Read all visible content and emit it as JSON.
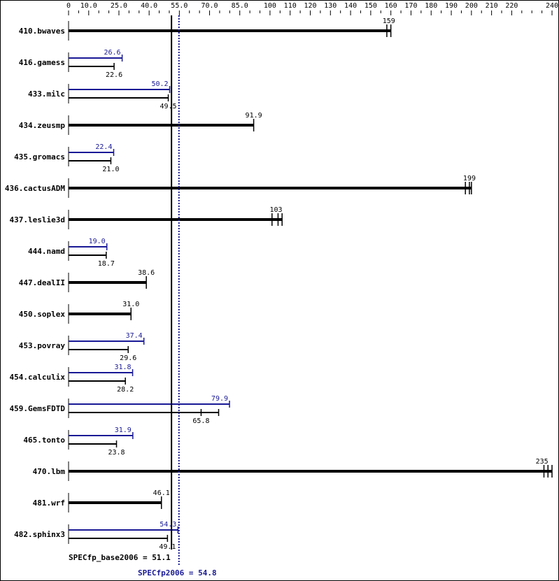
{
  "chart_data": {
    "type": "bar",
    "orientation": "horizontal",
    "title": "",
    "xlabel": "",
    "ylabel": "",
    "xlim": [
      0,
      240
    ],
    "grid": false,
    "legend": null,
    "x_ticks": [
      {
        "value": 0,
        "label": "0"
      },
      {
        "value": 10,
        "label": "10.0"
      },
      {
        "value": 25,
        "label": "25.0"
      },
      {
        "value": 40,
        "label": "40.0"
      },
      {
        "value": 55,
        "label": "55.0"
      },
      {
        "value": 70,
        "label": "70.0"
      },
      {
        "value": 85,
        "label": "85.0"
      },
      {
        "value": 100,
        "label": "100"
      },
      {
        "value": 110,
        "label": "110"
      },
      {
        "value": 120,
        "label": "120"
      },
      {
        "value": 130,
        "label": "130"
      },
      {
        "value": 140,
        "label": "140"
      },
      {
        "value": 150,
        "label": "150"
      },
      {
        "value": 160,
        "label": "160"
      },
      {
        "value": 170,
        "label": "170"
      },
      {
        "value": 180,
        "label": "180"
      },
      {
        "value": 190,
        "label": "190"
      },
      {
        "value": 200,
        "label": "200"
      },
      {
        "value": 210,
        "label": "210"
      },
      {
        "value": 220,
        "label": "220"
      },
      {
        "value": 240,
        "label": "240"
      }
    ],
    "categories": [
      "410.bwaves",
      "416.gamess",
      "433.milc",
      "434.zeusmp",
      "435.gromacs",
      "436.cactusADM",
      "437.leslie3d",
      "444.namd",
      "447.dealII",
      "450.soplex",
      "453.povray",
      "454.calculix",
      "459.GemsFDTD",
      "465.tonto",
      "470.lbm",
      "481.wrf",
      "482.sphinx3"
    ],
    "series": [
      {
        "name": "base",
        "color": "#000000",
        "values": [
          159,
          22.6,
          49.5,
          91.9,
          21.0,
          199,
          103,
          18.7,
          38.6,
          31.0,
          29.6,
          28.2,
          65.8,
          23.8,
          235,
          46.1,
          49.1
        ]
      },
      {
        "name": "peak",
        "color": "#191996",
        "values": [
          null,
          26.6,
          50.2,
          null,
          22.4,
          null,
          null,
          19.0,
          null,
          null,
          37.4,
          31.8,
          79.9,
          31.9,
          null,
          null,
          54.3
        ]
      }
    ],
    "bars": [
      {
        "name": "410.bwaves",
        "base": 159,
        "base_label": "159",
        "peak": null,
        "peak_label": null,
        "base_max": 160,
        "ticks": [
          158,
          160
        ]
      },
      {
        "name": "416.gamess",
        "base": 22.6,
        "base_label": "22.6",
        "peak": 26.6,
        "peak_label": "26.6"
      },
      {
        "name": "433.milc",
        "base": 49.5,
        "base_label": "49.5",
        "peak": 50.2,
        "peak_label": "50.2"
      },
      {
        "name": "434.zeusmp",
        "base": 91.9,
        "base_label": "91.9",
        "peak": null,
        "peak_label": null
      },
      {
        "name": "435.gromacs",
        "base": 21.0,
        "base_label": "21.0",
        "peak": 22.4,
        "peak_label": "22.4"
      },
      {
        "name": "436.cactusADM",
        "base": 199,
        "base_label": "199",
        "peak": null,
        "peak_label": null,
        "base_max": 200,
        "ticks": [
          197,
          199,
          200
        ]
      },
      {
        "name": "437.leslie3d",
        "base": 103,
        "base_label": "103",
        "peak": null,
        "peak_label": null,
        "base_max": 106,
        "ticks": [
          101,
          104,
          106
        ]
      },
      {
        "name": "444.namd",
        "base": 18.7,
        "base_label": "18.7",
        "peak": 19.0,
        "peak_label": "19.0"
      },
      {
        "name": "447.dealII",
        "base": 38.6,
        "base_label": "38.6",
        "peak": null,
        "peak_label": null
      },
      {
        "name": "450.soplex",
        "base": 31.0,
        "base_label": "31.0",
        "peak": null,
        "peak_label": null
      },
      {
        "name": "453.povray",
        "base": 29.6,
        "base_label": "29.6",
        "peak": 37.4,
        "peak_label": "37.4"
      },
      {
        "name": "454.calculix",
        "base": 28.2,
        "base_label": "28.2",
        "peak": 31.8,
        "peak_label": "31.8"
      },
      {
        "name": "459.GemsFDTD",
        "base": 65.8,
        "base_label": "65.8",
        "peak": 79.9,
        "peak_label": "79.9",
        "base_max": 74.5
      },
      {
        "name": "465.tonto",
        "base": 23.8,
        "base_label": "23.8",
        "peak": 31.9,
        "peak_label": "31.9"
      },
      {
        "name": "470.lbm",
        "base": 235,
        "base_label": "235",
        "peak": null,
        "peak_label": null,
        "base_max": 240,
        "ticks": [
          236,
          238,
          240
        ]
      },
      {
        "name": "481.wrf",
        "base": 46.1,
        "base_label": "46.1",
        "peak": null,
        "peak_label": null
      },
      {
        "name": "482.sphinx3",
        "base": 49.1,
        "base_label": "49.1",
        "peak": 54.3,
        "peak_label": "54.3"
      }
    ],
    "reference_lines": [
      {
        "name": "SPECfp_base2006",
        "value": 51.1,
        "label": "SPECfp_base2006 = 51.1",
        "color": "#000000",
        "style": "solid"
      },
      {
        "name": "SPECfp2006",
        "value": 54.8,
        "label": "SPECfp2006 = 54.8",
        "color": "#191996",
        "style": "dotted"
      }
    ]
  },
  "colors": {
    "base": "#000000",
    "peak": "#191996",
    "background": "#ffffff"
  },
  "summary": {
    "base_label": "SPECfp_base2006 = 51.1",
    "peak_label": "SPECfp2006 = 54.8"
  }
}
